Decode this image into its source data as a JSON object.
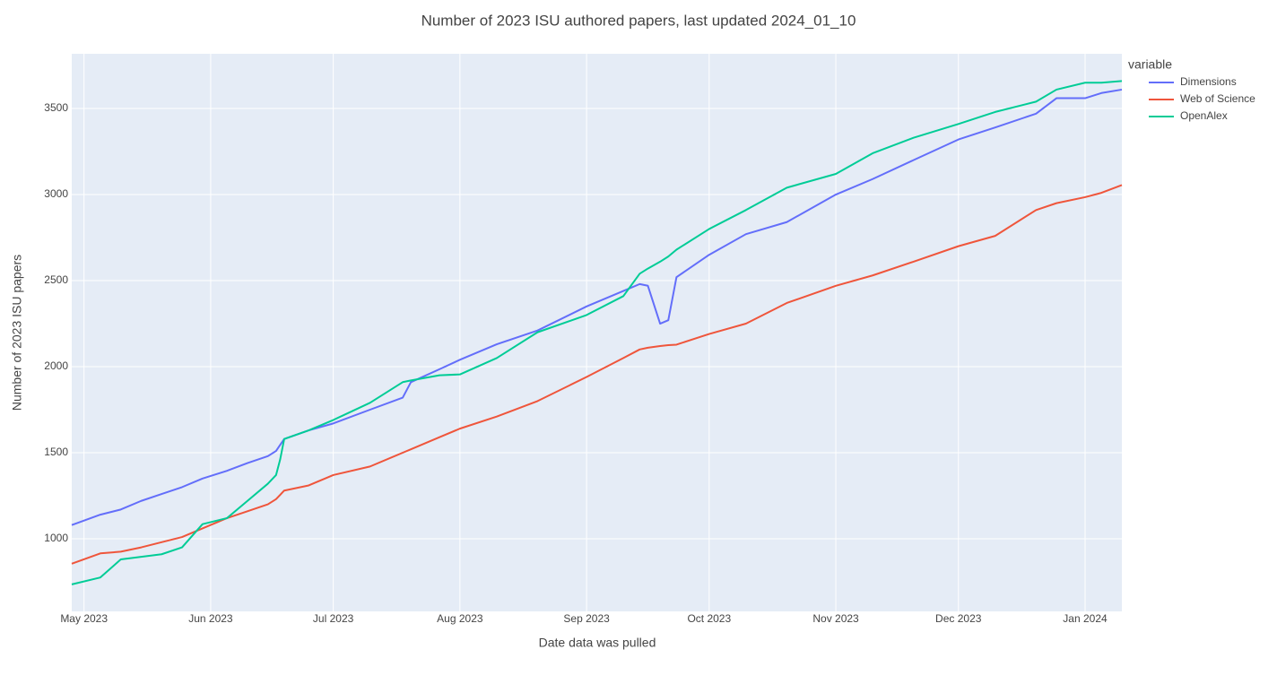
{
  "chart_data": {
    "type": "line",
    "title": "Number of 2023 ISU authored papers, last updated 2024_01_10",
    "x_label": "Date data was pulled",
    "y_label": "Number of 2023 ISU papers",
    "legend_title": "variable",
    "legend_position": "right",
    "grid": true,
    "x": [
      "2023-04-28",
      "2023-05-05",
      "2023-05-10",
      "2023-05-15",
      "2023-05-20",
      "2023-05-25",
      "2023-05-30",
      "2023-06-05",
      "2023-06-10",
      "2023-06-15",
      "2023-06-17",
      "2023-06-18",
      "2023-06-19",
      "2023-06-25",
      "2023-07-01",
      "2023-07-10",
      "2023-07-18",
      "2023-07-20",
      "2023-07-27",
      "2023-08-01",
      "2023-08-10",
      "2023-08-20",
      "2023-09-01",
      "2023-09-10",
      "2023-09-14",
      "2023-09-16",
      "2023-09-19",
      "2023-09-21",
      "2023-09-23",
      "2023-10-01",
      "2023-10-10",
      "2023-10-20",
      "2023-11-01",
      "2023-11-10",
      "2023-11-20",
      "2023-12-01",
      "2023-12-10",
      "2023-12-20",
      "2023-12-25",
      "2024-01-01",
      "2024-01-05",
      "2024-01-10"
    ],
    "series": [
      {
        "name": "Dimensions",
        "color": "#636efa",
        "values": [
          1080,
          1140,
          1170,
          1220,
          1260,
          1300,
          1350,
          1395,
          1440,
          1480,
          1510,
          1545,
          1580,
          1630,
          1670,
          1750,
          1820,
          1910,
          1985,
          2040,
          2130,
          2210,
          2350,
          2440,
          2480,
          2470,
          2250,
          2270,
          2520,
          2650,
          2770,
          2840,
          3000,
          3090,
          3200,
          3320,
          3390,
          3470,
          3560,
          3560,
          3590,
          3610
        ]
      },
      {
        "name": "Web of Science",
        "color": "#ef553b",
        "values": [
          855,
          915,
          925,
          950,
          980,
          1010,
          1060,
          1120,
          1160,
          1200,
          1230,
          1255,
          1280,
          1310,
          1370,
          1420,
          1500,
          1520,
          1590,
          1640,
          1710,
          1800,
          1940,
          2050,
          2100,
          2110,
          2120,
          2125,
          2128,
          2190,
          2250,
          2370,
          2470,
          2530,
          2610,
          2700,
          2760,
          2910,
          2950,
          2985,
          3010,
          3055
        ]
      },
      {
        "name": "OpenAlex",
        "color": "#00cc96",
        "values": [
          735,
          775,
          880,
          895,
          910,
          950,
          1085,
          1120,
          1220,
          1320,
          1370,
          1460,
          1580,
          1630,
          1690,
          1790,
          1910,
          1920,
          1950,
          1955,
          2050,
          2200,
          2300,
          2410,
          2540,
          2570,
          2610,
          2640,
          2680,
          2800,
          2910,
          3040,
          3120,
          3240,
          3330,
          3410,
          3480,
          3540,
          3610,
          3650,
          3650,
          3660
        ]
      }
    ],
    "xlim": [
      "2023-04-28",
      "2024-01-10"
    ],
    "xticks": [
      {
        "value": "2023-05-01",
        "label": "May 2023"
      },
      {
        "value": "2023-06-01",
        "label": "Jun 2023"
      },
      {
        "value": "2023-07-01",
        "label": "Jul 2023"
      },
      {
        "value": "2023-08-01",
        "label": "Aug 2023"
      },
      {
        "value": "2023-09-01",
        "label": "Sep 2023"
      },
      {
        "value": "2023-10-01",
        "label": "Oct 2023"
      },
      {
        "value": "2023-11-01",
        "label": "Nov 2023"
      },
      {
        "value": "2023-12-01",
        "label": "Dec 2023"
      },
      {
        "value": "2024-01-01",
        "label": "Jan 2024"
      }
    ],
    "ylim": [
      578,
      3818
    ],
    "yticks": [
      1000,
      1500,
      2000,
      2500,
      3000,
      3500
    ]
  }
}
